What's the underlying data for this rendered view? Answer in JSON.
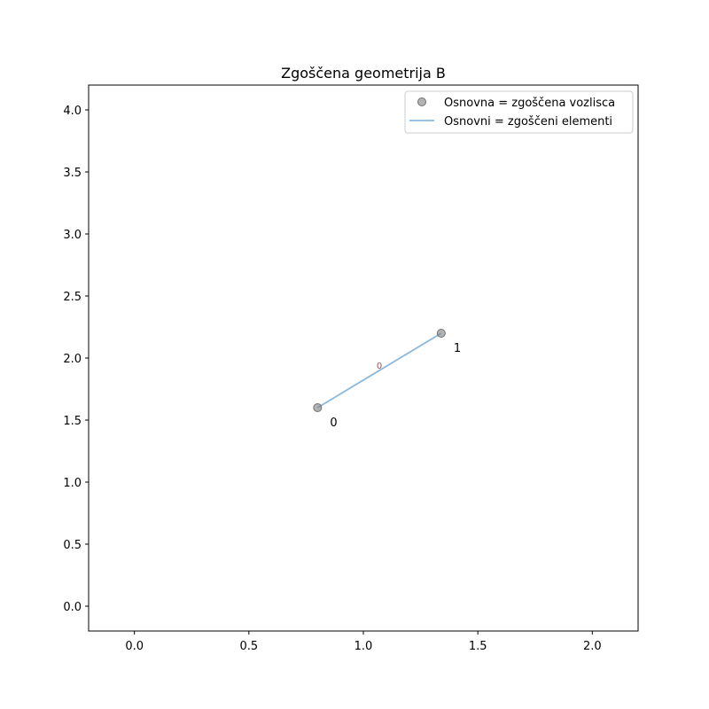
{
  "chart_data": {
    "type": "scatter",
    "title": "Zgoščena geometrija B",
    "xlabel": "",
    "ylabel": "",
    "xlim": [
      -0.2,
      2.2
    ],
    "ylim": [
      -0.2,
      4.2
    ],
    "x_ticks": [
      0.0,
      0.5,
      1.0,
      1.5,
      2.0
    ],
    "x_tick_labels": [
      "0.0",
      "0.5",
      "1.0",
      "1.5",
      "2.0"
    ],
    "y_ticks": [
      0.0,
      0.5,
      1.0,
      1.5,
      2.0,
      2.5,
      3.0,
      3.5,
      4.0
    ],
    "y_tick_labels": [
      "0.0",
      "0.5",
      "1.0",
      "1.5",
      "2.0",
      "2.5",
      "3.0",
      "3.5",
      "4.0"
    ],
    "grid": false,
    "legend_position": "top-right",
    "series": [
      {
        "name": "Osnovna = zgoščena vozlisca",
        "kind": "points",
        "color": "#808080",
        "points": [
          {
            "x": 0.8,
            "y": 1.6,
            "label": "0"
          },
          {
            "x": 1.34,
            "y": 2.2,
            "label": "1"
          }
        ]
      },
      {
        "name": "Osnovni = zgoščeni elementi",
        "kind": "segments",
        "color": "#8ab9dd",
        "segments": [
          {
            "from": 0,
            "to": 1,
            "label": "0",
            "label_color": "#a05050"
          }
        ]
      }
    ]
  }
}
